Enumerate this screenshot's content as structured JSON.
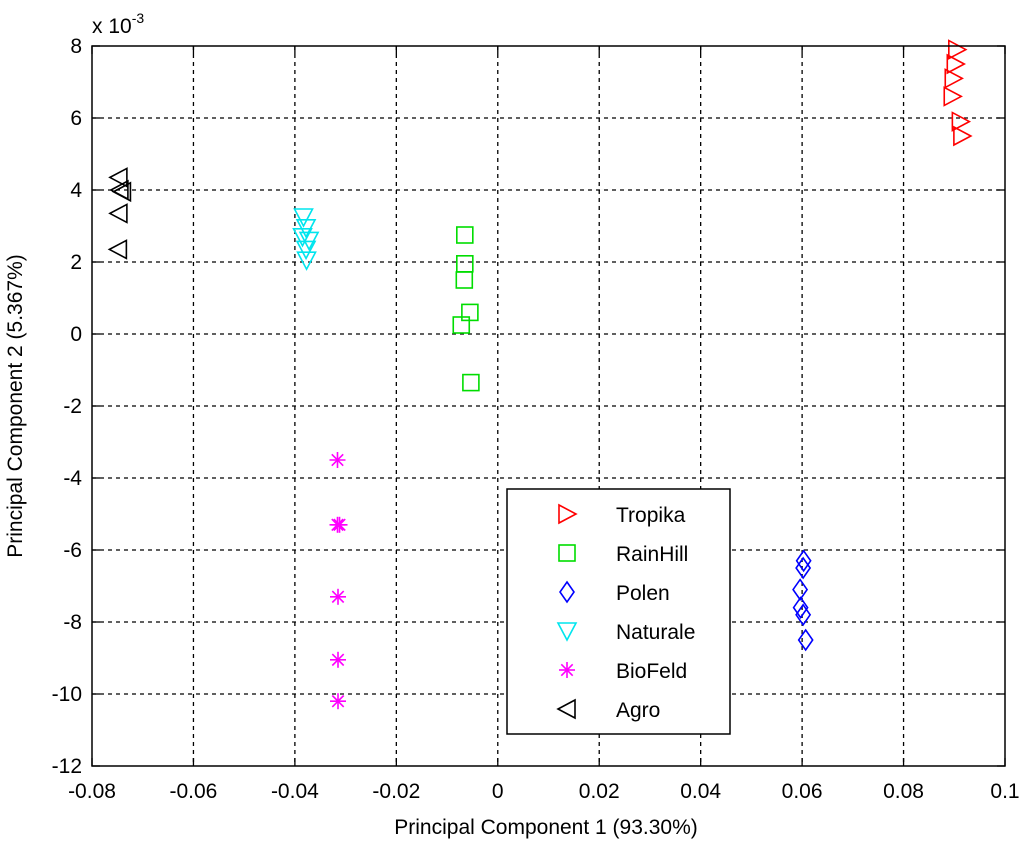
{
  "chart_data": {
    "type": "scatter",
    "xlabel": "Principal Component 1 (93.30%)",
    "ylabel": "Principal Component 2 (5.367%)",
    "exponent_base": "x 10",
    "exponent_power": "-3",
    "xlim": [
      -0.08,
      0.1
    ],
    "ylim": [
      -12,
      8
    ],
    "xticks": [
      -0.08,
      -0.06,
      -0.04,
      -0.02,
      0,
      0.02,
      0.04,
      0.06,
      0.08,
      0.1
    ],
    "xtick_labels": [
      "-0.08",
      "-0.06",
      "-0.04",
      "-0.02",
      "0",
      "0.02",
      "0.04",
      "0.06",
      "0.08",
      "0.1"
    ],
    "yticks": [
      8,
      6,
      4,
      2,
      0,
      -2,
      -4,
      -6,
      -8,
      -10,
      -12
    ],
    "ytick_labels": [
      "8",
      "6",
      "4",
      "2",
      "0",
      "-2",
      "-4",
      "-6",
      "-8",
      "-10",
      "-12"
    ],
    "y_unit_note": "y values are in units of 10^-3 as printed on the axis",
    "grid": true,
    "legend_position": "bottom-center",
    "series": [
      {
        "name": "Tropika",
        "marker": "triangle-right",
        "color": "#ff0000",
        "points": [
          [
            0.0905,
            7.9
          ],
          [
            0.0902,
            7.5
          ],
          [
            0.0898,
            7.1
          ],
          [
            0.0896,
            6.6
          ],
          [
            0.0912,
            5.9
          ],
          [
            0.0915,
            5.5
          ]
        ]
      },
      {
        "name": "RainHill",
        "marker": "square",
        "color": "#00dd00",
        "points": [
          [
            -0.0065,
            2.75
          ],
          [
            -0.0065,
            1.95
          ],
          [
            -0.0066,
            1.5
          ],
          [
            -0.0055,
            0.6
          ],
          [
            -0.0072,
            0.25
          ],
          [
            -0.0053,
            -1.35
          ]
        ]
      },
      {
        "name": "Polen",
        "marker": "diamond",
        "color": "#0000ff",
        "points": [
          [
            0.0603,
            -6.3
          ],
          [
            0.0602,
            -6.5
          ],
          [
            0.0596,
            -7.1
          ],
          [
            0.0597,
            -7.6
          ],
          [
            0.0602,
            -7.8
          ],
          [
            0.0607,
            -8.5
          ]
        ]
      },
      {
        "name": "Naturale",
        "marker": "triangle-down",
        "color": "#00e5ee",
        "points": [
          [
            -0.0383,
            3.25
          ],
          [
            -0.0378,
            2.95
          ],
          [
            -0.0385,
            2.7
          ],
          [
            -0.0372,
            2.6
          ],
          [
            -0.0378,
            2.35
          ],
          [
            -0.0377,
            2.05
          ]
        ]
      },
      {
        "name": "BioFeld",
        "marker": "asterisk",
        "color": "#ff00ff",
        "points": [
          [
            -0.0316,
            -3.5
          ],
          [
            -0.0312,
            -5.3
          ],
          [
            -0.0316,
            -5.3
          ],
          [
            -0.0315,
            -7.3
          ],
          [
            -0.0315,
            -9.05
          ],
          [
            -0.0315,
            -10.2
          ]
        ]
      },
      {
        "name": "Agro",
        "marker": "triangle-left",
        "color": "#000000",
        "points": [
          [
            -0.0747,
            4.35
          ],
          [
            -0.0745,
            4.0
          ],
          [
            -0.074,
            3.95
          ],
          [
            -0.0747,
            3.35
          ],
          [
            -0.0748,
            2.35
          ]
        ]
      }
    ]
  }
}
